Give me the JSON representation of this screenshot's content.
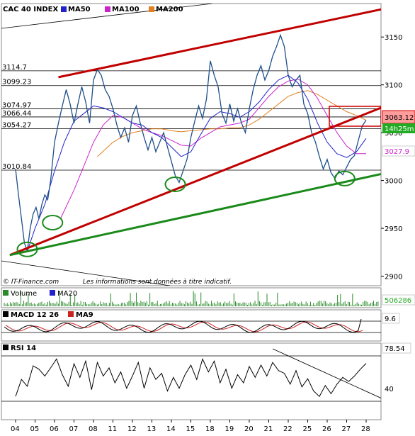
{
  "colors": {
    "price": "#1e4f8a",
    "ma50": "#2222cc",
    "ma100": "#cc22cc",
    "ma200": "#e08020",
    "channel": "#c00000",
    "support": "#1a8a1a",
    "circle": "#1a8a1a",
    "volume": "#2a8a2a",
    "macd_hist": "#ffffff",
    "macd_line": "#000000",
    "macd_signal": "#cc2222",
    "rsi": "#000000",
    "box_red": "#cc0000",
    "badge_price_bg": "#ff9c9c",
    "badge_time_bg": "#22aa22",
    "badge_ma100_fg": "#cc22cc",
    "badge_vol_fg": "#22aa22"
  },
  "chart_data": [
    {
      "type": "line",
      "title": "CAC 40 INDEX",
      "legend": [
        "MA50",
        "MA100",
        "MA200"
      ],
      "legend_placement": "top-left",
      "ylim": [
        2890,
        3185
      ],
      "y_ticks": [
        2900,
        2950,
        3000,
        3050,
        3100,
        3150
      ],
      "x_ticks": [
        "04",
        "05",
        "06",
        "07",
        "08",
        "11",
        "12",
        "13",
        "14",
        "15",
        "18",
        "19",
        "20",
        "21",
        "22",
        "25",
        "26",
        "27",
        "28"
      ],
      "levels": [
        {
          "label": "3114.7",
          "value": 3114.7
        },
        {
          "label": "3099.23",
          "value": 3099.23
        },
        {
          "label": "3074.97",
          "value": 3074.97
        },
        {
          "label": "3066.44",
          "value": 3066.44
        },
        {
          "label": "3054.27",
          "value": 3054.27
        },
        {
          "label": "3010.84",
          "value": 3010.84
        }
      ],
      "price": [
        [
          0,
          3012
        ],
        [
          0.15,
          2985
        ],
        [
          0.3,
          2960
        ],
        [
          0.45,
          2935
        ],
        [
          0.6,
          2926
        ],
        [
          0.75,
          2950
        ],
        [
          0.9,
          2965
        ],
        [
          1.05,
          2972
        ],
        [
          1.2,
          2960
        ],
        [
          1.35,
          2975
        ],
        [
          1.5,
          2985
        ],
        [
          1.65,
          2980
        ],
        [
          1.8,
          3000
        ],
        [
          2.0,
          3040
        ],
        [
          2.2,
          3060
        ],
        [
          2.4,
          3078
        ],
        [
          2.6,
          3095
        ],
        [
          2.8,
          3080
        ],
        [
          3.0,
          3060
        ],
        [
          3.2,
          3080
        ],
        [
          3.4,
          3098
        ],
        [
          3.6,
          3082
        ],
        [
          3.8,
          3060
        ],
        [
          4.0,
          3105
        ],
        [
          4.2,
          3116
        ],
        [
          4.4,
          3110
        ],
        [
          4.6,
          3095
        ],
        [
          4.8,
          3088
        ],
        [
          5.0,
          3075
        ],
        [
          5.2,
          3058
        ],
        [
          5.4,
          3045
        ],
        [
          5.6,
          3055
        ],
        [
          5.8,
          3040
        ],
        [
          6.0,
          3068
        ],
        [
          6.2,
          3078
        ],
        [
          6.4,
          3060
        ],
        [
          6.6,
          3045
        ],
        [
          6.8,
          3032
        ],
        [
          7.0,
          3045
        ],
        [
          7.2,
          3030
        ],
        [
          7.4,
          3040
        ],
        [
          7.6,
          3050
        ],
        [
          7.8,
          3035
        ],
        [
          8.0,
          3020
        ],
        [
          8.2,
          3005
        ],
        [
          8.4,
          2998
        ],
        [
          8.6,
          3010
        ],
        [
          8.8,
          3022
        ],
        [
          9.0,
          3045
        ],
        [
          9.2,
          3062
        ],
        [
          9.4,
          3078
        ],
        [
          9.6,
          3065
        ],
        [
          9.8,
          3085
        ],
        [
          10.0,
          3125
        ],
        [
          10.2,
          3110
        ],
        [
          10.4,
          3098
        ],
        [
          10.6,
          3070
        ],
        [
          10.8,
          3060
        ],
        [
          11.0,
          3080
        ],
        [
          11.2,
          3062
        ],
        [
          11.4,
          3075
        ],
        [
          11.6,
          3060
        ],
        [
          11.8,
          3050
        ],
        [
          12.0,
          3075
        ],
        [
          12.2,
          3095
        ],
        [
          12.4,
          3110
        ],
        [
          12.6,
          3120
        ],
        [
          12.8,
          3105
        ],
        [
          13.0,
          3115
        ],
        [
          13.2,
          3130
        ],
        [
          13.4,
          3140
        ],
        [
          13.6,
          3152
        ],
        [
          13.8,
          3140
        ],
        [
          14.0,
          3110
        ],
        [
          14.2,
          3098
        ],
        [
          14.4,
          3105
        ],
        [
          14.6,
          3110
        ],
        [
          14.8,
          3080
        ],
        [
          15.0,
          3070
        ],
        [
          15.2,
          3050
        ],
        [
          15.4,
          3040
        ],
        [
          15.6,
          3025
        ],
        [
          15.8,
          3012
        ],
        [
          16.0,
          3022
        ],
        [
          16.2,
          3008
        ],
        [
          16.4,
          3002
        ],
        [
          16.6,
          3010
        ],
        [
          16.8,
          3006
        ],
        [
          17.0,
          3014
        ],
        [
          17.2,
          3022
        ],
        [
          17.4,
          3026
        ],
        [
          17.6,
          3042
        ],
        [
          17.8,
          3057
        ],
        [
          18.0,
          3063.12
        ]
      ],
      "ma50": [
        [
          0.6,
          2926
        ],
        [
          1.0,
          2950
        ],
        [
          1.5,
          2975
        ],
        [
          2.0,
          3010
        ],
        [
          2.5,
          3040
        ],
        [
          3.0,
          3062
        ],
        [
          3.5,
          3070
        ],
        [
          4.0,
          3078
        ],
        [
          4.5,
          3076
        ],
        [
          5.0,
          3072
        ],
        [
          5.5,
          3066
        ],
        [
          6.0,
          3060
        ],
        [
          6.5,
          3058
        ],
        [
          7.0,
          3050
        ],
        [
          7.5,
          3045
        ],
        [
          8.0,
          3035
        ],
        [
          8.5,
          3025
        ],
        [
          9.0,
          3030
        ],
        [
          9.5,
          3048
        ],
        [
          10.0,
          3065
        ],
        [
          10.5,
          3072
        ],
        [
          11.0,
          3070
        ],
        [
          11.5,
          3066
        ],
        [
          12.0,
          3072
        ],
        [
          12.5,
          3082
        ],
        [
          13.0,
          3095
        ],
        [
          13.5,
          3105
        ],
        [
          14.0,
          3110
        ],
        [
          14.5,
          3102
        ],
        [
          15.0,
          3085
        ],
        [
          15.5,
          3060
        ],
        [
          16.0,
          3040
        ],
        [
          16.5,
          3028
        ],
        [
          17.0,
          3024
        ],
        [
          17.5,
          3030
        ],
        [
          18.0,
          3044
        ]
      ],
      "ma100": [
        [
          2.3,
          2960
        ],
        [
          3.0,
          2990
        ],
        [
          3.5,
          3015
        ],
        [
          4.0,
          3040
        ],
        [
          4.5,
          3058
        ],
        [
          5.0,
          3068
        ],
        [
          5.5,
          3066
        ],
        [
          6.0,
          3060
        ],
        [
          6.5,
          3054
        ],
        [
          7.0,
          3050
        ],
        [
          7.5,
          3047
        ],
        [
          8.0,
          3042
        ],
        [
          8.5,
          3037
        ],
        [
          9.0,
          3036
        ],
        [
          9.5,
          3044
        ],
        [
          10.0,
          3050
        ],
        [
          10.5,
          3056
        ],
        [
          11.0,
          3058
        ],
        [
          11.5,
          3060
        ],
        [
          12.0,
          3064
        ],
        [
          12.5,
          3076
        ],
        [
          13.0,
          3088
        ],
        [
          13.5,
          3098
        ],
        [
          14.0,
          3104
        ],
        [
          14.5,
          3106
        ],
        [
          15.0,
          3100
        ],
        [
          15.5,
          3086
        ],
        [
          16.0,
          3068
        ],
        [
          16.5,
          3050
        ],
        [
          17.0,
          3036
        ],
        [
          17.5,
          3028
        ],
        [
          18.0,
          3028
        ]
      ],
      "ma200": [
        [
          4.2,
          3025
        ],
        [
          5.0,
          3040
        ],
        [
          5.5,
          3046
        ],
        [
          6.0,
          3050
        ],
        [
          6.5,
          3052
        ],
        [
          7.0,
          3054
        ],
        [
          7.5,
          3054
        ],
        [
          8.0,
          3052
        ],
        [
          8.5,
          3051
        ],
        [
          9.0,
          3052
        ],
        [
          9.5,
          3053
        ],
        [
          10.0,
          3054
        ],
        [
          10.5,
          3054
        ],
        [
          11.0,
          3055
        ],
        [
          11.5,
          3055
        ],
        [
          12.0,
          3058
        ],
        [
          12.5,
          3064
        ],
        [
          13.0,
          3072
        ],
        [
          13.5,
          3080
        ],
        [
          14.0,
          3088
        ],
        [
          14.5,
          3092
        ],
        [
          15.0,
          3094
        ],
        [
          15.5,
          3090
        ],
        [
          16.0,
          3084
        ],
        [
          16.5,
          3078
        ],
        [
          17.0,
          3072
        ],
        [
          17.5,
          3068
        ],
        [
          18.0,
          3063
        ]
      ],
      "channel_upper": [
        [
          2.2,
          3108
        ],
        [
          19.5,
          3182
        ]
      ],
      "channel_lower": [
        [
          -0.3,
          2922
        ],
        [
          19.5,
          3082
        ]
      ],
      "support_line": [
        [
          -0.3,
          2922
        ],
        [
          19.5,
          3010
        ]
      ],
      "circles": [
        [
          0.6,
          2928
        ],
        [
          1.9,
          2956
        ],
        [
          8.2,
          2996
        ],
        [
          16.9,
          3002
        ]
      ],
      "last_price_label": "3063.12",
      "time_label": "14h25m",
      "ma100_label": "3027.9",
      "copyright": "© IT-Finance.com",
      "disclaimer": "Les informations sont données à titre indicatif."
    },
    {
      "type": "bar",
      "legend": [
        "Volume",
        "MA20"
      ],
      "last_label": "506286"
    },
    {
      "type": "line",
      "legend": [
        "MACD 12 26",
        "MA9"
      ],
      "last_label": "9.6"
    },
    {
      "type": "line",
      "title": "RSI 14",
      "y_ticks": [
        40
      ],
      "last_label": "78.54",
      "trendline": [
        [
          13.2,
          100
        ],
        [
          19.5,
          18
        ]
      ],
      "rsi": [
        [
          0,
          30
        ],
        [
          0.3,
          55
        ],
        [
          0.6,
          45
        ],
        [
          0.9,
          75
        ],
        [
          1.2,
          70
        ],
        [
          1.5,
          60
        ],
        [
          1.8,
          72
        ],
        [
          2.1,
          85
        ],
        [
          2.4,
          62
        ],
        [
          2.7,
          45
        ],
        [
          3.0,
          78
        ],
        [
          3.3,
          58
        ],
        [
          3.6,
          82
        ],
        [
          3.9,
          40
        ],
        [
          4.2,
          80
        ],
        [
          4.5,
          60
        ],
        [
          4.8,
          72
        ],
        [
          5.1,
          50
        ],
        [
          5.4,
          66
        ],
        [
          5.7,
          42
        ],
        [
          6.0,
          60
        ],
        [
          6.3,
          80
        ],
        [
          6.6,
          42
        ],
        [
          6.9,
          72
        ],
        [
          7.2,
          55
        ],
        [
          7.5,
          64
        ],
        [
          7.8,
          38
        ],
        [
          8.1,
          58
        ],
        [
          8.4,
          42
        ],
        [
          8.7,
          62
        ],
        [
          9.0,
          76
        ],
        [
          9.3,
          55
        ],
        [
          9.6,
          85
        ],
        [
          9.9,
          66
        ],
        [
          10.2,
          82
        ],
        [
          10.5,
          50
        ],
        [
          10.8,
          70
        ],
        [
          11.1,
          42
        ],
        [
          11.4,
          62
        ],
        [
          11.7,
          50
        ],
        [
          12.0,
          74
        ],
        [
          12.3,
          58
        ],
        [
          12.6,
          76
        ],
        [
          12.9,
          60
        ],
        [
          13.2,
          80
        ],
        [
          13.5,
          68
        ],
        [
          13.8,
          64
        ],
        [
          14.1,
          48
        ],
        [
          14.4,
          68
        ],
        [
          14.7,
          44
        ],
        [
          15.0,
          56
        ],
        [
          15.3,
          38
        ],
        [
          15.6,
          30
        ],
        [
          15.9,
          46
        ],
        [
          16.2,
          34
        ],
        [
          16.5,
          48
        ],
        [
          16.8,
          58
        ],
        [
          17.1,
          52
        ],
        [
          17.4,
          60
        ],
        [
          17.7,
          70
        ],
        [
          18.0,
          78.54
        ]
      ]
    }
  ]
}
